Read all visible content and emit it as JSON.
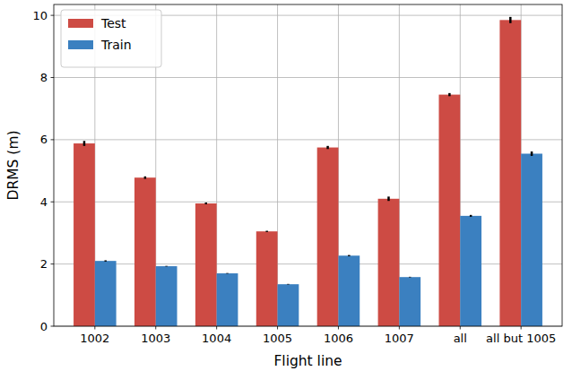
{
  "chart_data": {
    "type": "bar",
    "xlabel": "Flight line",
    "ylabel": "DRMS (m)",
    "categories": [
      "1002",
      "1003",
      "1004",
      "1005",
      "1006",
      "1007",
      "all",
      "all but 1005"
    ],
    "series": [
      {
        "name": "Test",
        "color": "#cd4b44",
        "values": [
          5.88,
          4.78,
          3.95,
          3.05,
          5.75,
          4.1,
          7.45,
          9.85
        ],
        "errors": [
          0.08,
          0.04,
          0.03,
          0.02,
          0.05,
          0.07,
          0.05,
          0.1
        ]
      },
      {
        "name": "Train",
        "color": "#3b80c0",
        "values": [
          2.1,
          1.93,
          1.7,
          1.35,
          2.27,
          1.58,
          3.55,
          5.55
        ],
        "errors": [
          0.02,
          0.01,
          0.01,
          0.01,
          0.02,
          0.01,
          0.03,
          0.07
        ]
      }
    ],
    "ylim": [
      0,
      10.35
    ],
    "yticks": [
      0,
      2,
      4,
      6,
      8,
      10
    ],
    "grid": true,
    "legend": "upper left"
  }
}
